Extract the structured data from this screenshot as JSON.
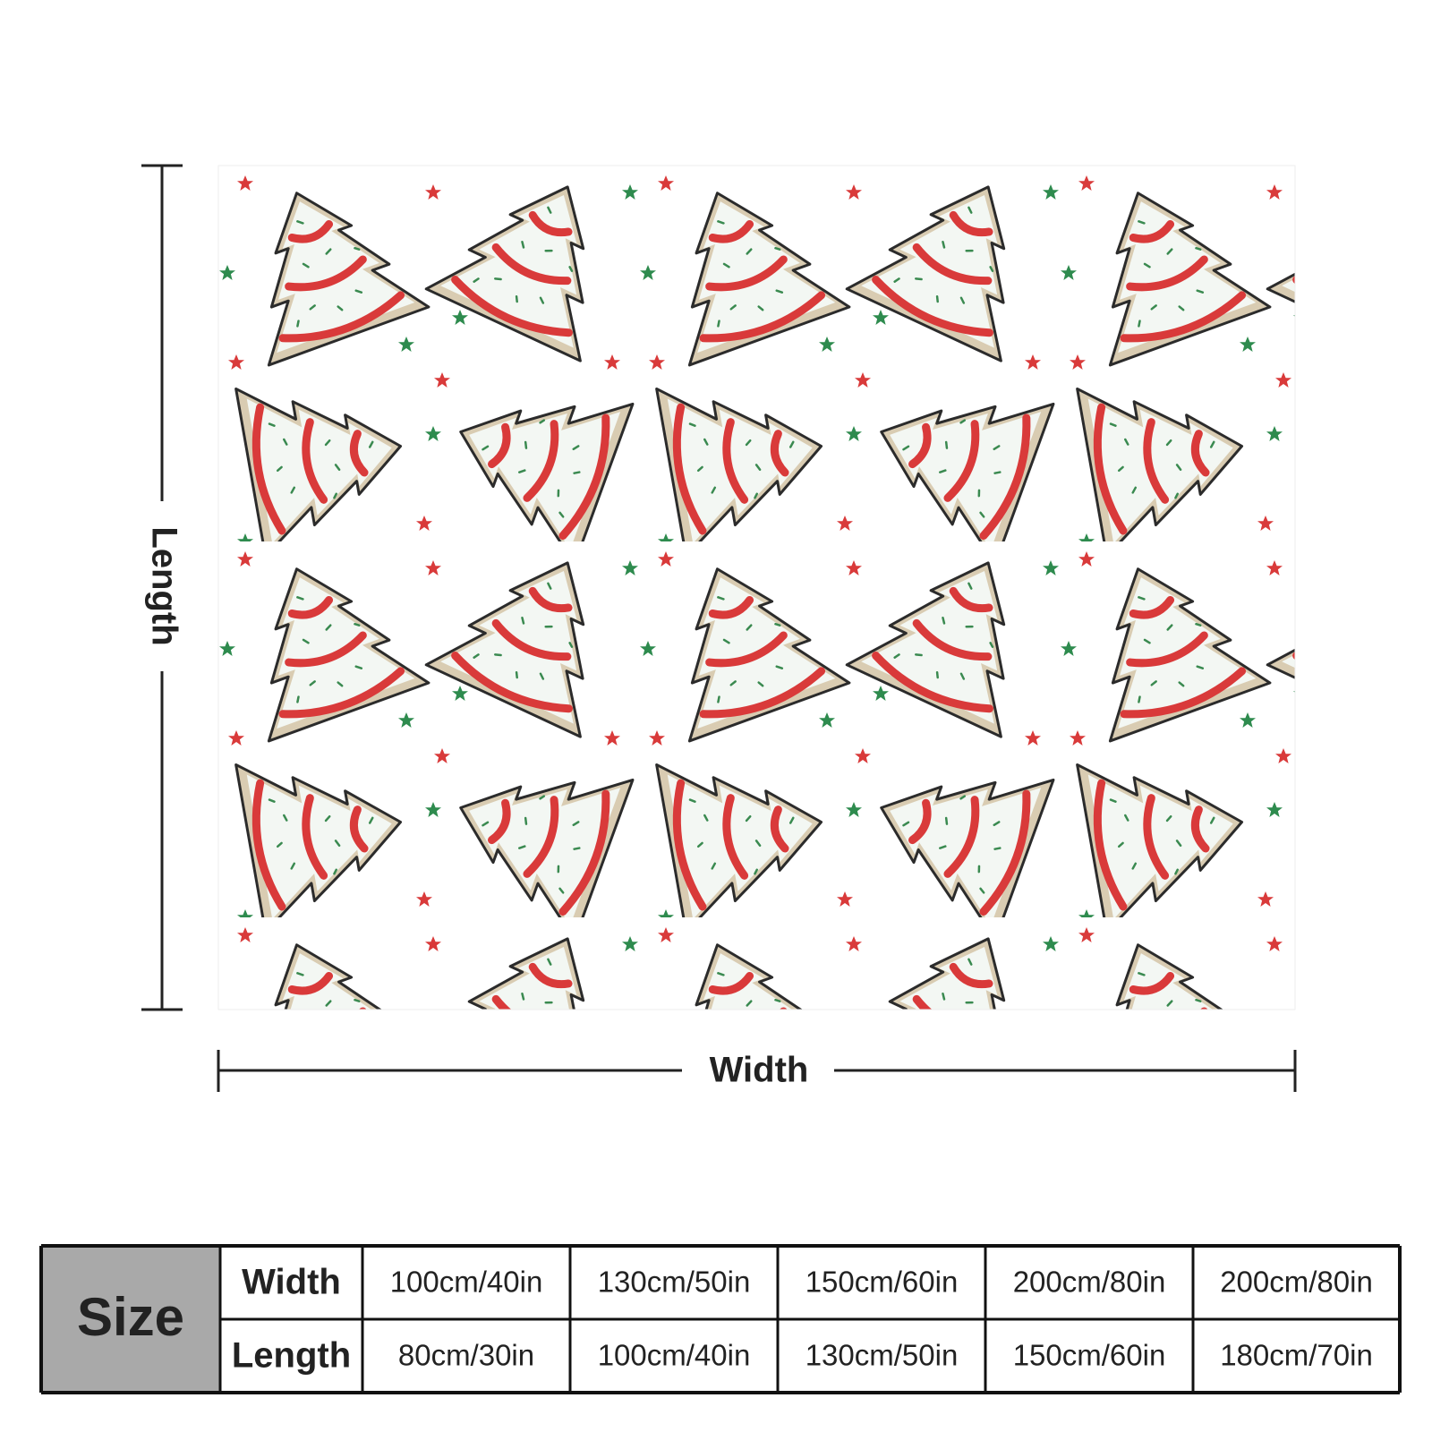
{
  "dimensions": {
    "length_label": "Length",
    "width_label": "Width"
  },
  "size_table": {
    "label": "Size",
    "rows": [
      [
        "Width",
        "100cm/40in",
        "130cm/50in",
        "150cm/60in",
        "200cm/80in",
        "200cm/80in"
      ],
      [
        "Length",
        "80cm/30in",
        "100cm/40in",
        "130cm/50in",
        "150cm/60in",
        "180cm/70in"
      ]
    ]
  }
}
